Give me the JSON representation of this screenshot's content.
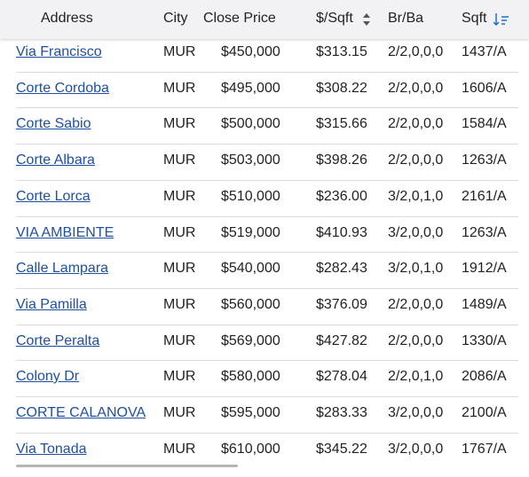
{
  "table": {
    "headers": [
      "Address",
      "City",
      "Close Price",
      "$/Sqft",
      "Br/Ba",
      "Sqft"
    ],
    "rows": [
      [
        "Via Francisco",
        "MUR",
        "$450,000",
        "$313.15",
        "2/2,0,0,0",
        "1437/A"
      ],
      [
        "Corte Cordoba",
        "MUR",
        "$495,000",
        "$308.22",
        "2/2,0,0,0",
        "1606/A"
      ],
      [
        "Corte Sabio",
        "MUR",
        "$500,000",
        "$315.66",
        "2/2,0,0,0",
        "1584/A"
      ],
      [
        "Corte Albara",
        "MUR",
        "$503,000",
        "$398.26",
        "2/2,0,0,0",
        "1263/A"
      ],
      [
        "Corte Lorca",
        "MUR",
        "$510,000",
        "$236.00",
        "3/2,0,1,0",
        "2161/A"
      ],
      [
        "VIA AMBIENTE",
        "MUR",
        "$519,000",
        "$410.93",
        "3/2,0,0,0",
        "1263/A"
      ],
      [
        "Calle Lampara",
        "MUR",
        "$540,000",
        "$282.43",
        "3/2,0,1,0",
        "1912/A"
      ],
      [
        "Via Pamilla",
        "MUR",
        "$560,000",
        "$376.09",
        "2/2,0,0,0",
        "1489/A"
      ],
      [
        "Corte Peralta",
        "MUR",
        "$569,000",
        "$427.82",
        "2/2,0,0,0",
        "1330/A"
      ],
      [
        "Colony Dr",
        "MUR",
        "$580,000",
        "$278.04",
        "2/2,0,1,0",
        "2086/A"
      ],
      [
        "CORTE CALANOVA",
        "MUR",
        "$595,000",
        "$283.33",
        "3/2,0,0,0",
        "2100/A"
      ],
      [
        "Via Tonada",
        "MUR",
        "$610,000",
        "$345.22",
        "3/2,0,0,0",
        "1767/A"
      ]
    ]
  }
}
